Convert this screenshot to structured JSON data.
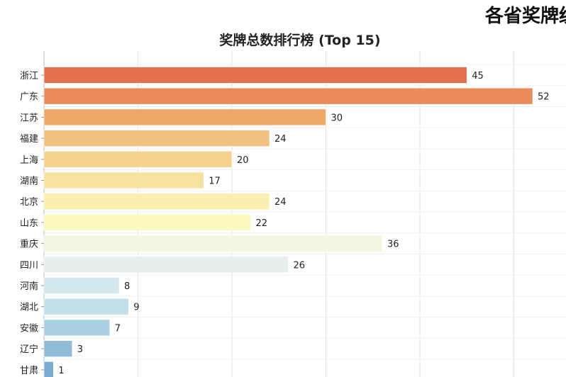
{
  "figure": {
    "title": "各省奖牌统计"
  },
  "chart_data": {
    "type": "bar",
    "orientation": "horizontal",
    "title": "奖牌总数排行榜 (Top 15)",
    "xlabel": "",
    "ylabel": "",
    "categories": [
      "浙江",
      "广东",
      "江苏",
      "福建",
      "上海",
      "湖南",
      "北京",
      "山东",
      "重庆",
      "四川",
      "河南",
      "湖北",
      "安徽",
      "辽宁",
      "甘肃"
    ],
    "values": [
      45,
      52,
      30,
      24,
      20,
      17,
      24,
      22,
      36,
      26,
      8,
      9,
      7,
      3,
      1
    ],
    "xlim": [
      0,
      54
    ],
    "grid": true,
    "bar_colors": [
      "#e3704f",
      "#e98c5a",
      "#eda86a",
      "#f2c080",
      "#f5d28e",
      "#f8e29f",
      "#fbeeae",
      "#fcf9c0",
      "#f0f6df",
      "#e7f1ec",
      "#d3e7ef",
      "#c2dfeb",
      "#a9cfe3",
      "#90bcd8",
      "#79acd0"
    ]
  }
}
